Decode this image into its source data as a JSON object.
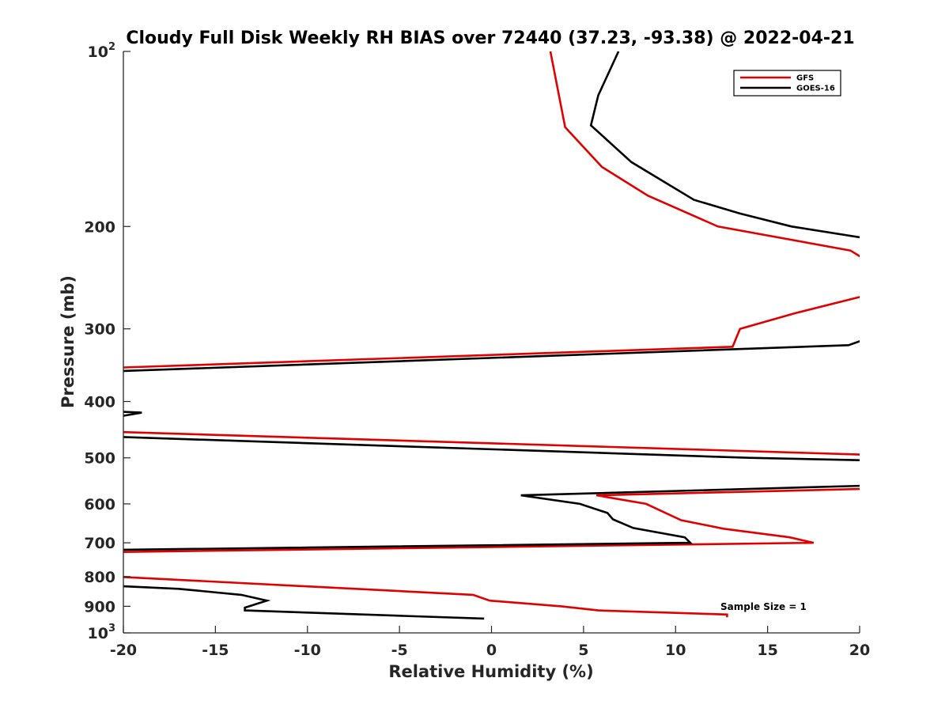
{
  "chart_data": {
    "type": "line",
    "title": "Cloudy Full Disk Weekly RH BIAS over 72440 (37.23, -93.38) @ 2022-04-21",
    "xlabel": "Relative Humidity (%)",
    "ylabel": "Pressure (mb)",
    "xlim": [
      -20,
      20
    ],
    "ylim": [
      100,
      1000
    ],
    "y_scale": "log",
    "y_reversed": true,
    "x_ticks": [
      -20,
      -15,
      -10,
      -5,
      0,
      5,
      10,
      15,
      20
    ],
    "x_tick_labels": [
      "-20",
      "-15",
      "-10",
      "-5",
      "0",
      "5",
      "10",
      "15",
      "20"
    ],
    "y_ticks": [
      {
        "value": 100,
        "base": "10",
        "exp": "2"
      },
      {
        "value": 200,
        "label": "200"
      },
      {
        "value": 300,
        "label": "300"
      },
      {
        "value": 400,
        "label": "400"
      },
      {
        "value": 500,
        "label": "500"
      },
      {
        "value": 600,
        "label": "600"
      },
      {
        "value": 700,
        "label": "700"
      },
      {
        "value": 800,
        "label": "800"
      },
      {
        "value": 900,
        "label": "900"
      },
      {
        "value": 1000,
        "base": "10",
        "exp": "3"
      }
    ],
    "grid": false,
    "legend_position": "top-right",
    "annotation": "Sample Size = 1",
    "series": [
      {
        "name": "GFS",
        "color": "#e00000",
        "points": [
          [
            3.2,
            100
          ],
          [
            4.0,
            135
          ],
          [
            6.0,
            158
          ],
          [
            8.5,
            177
          ],
          [
            12.3,
            200
          ],
          [
            19.5,
            220
          ],
          [
            20.5,
            230
          ],
          [
            null,
            null
          ],
          [
            20.5,
            262
          ],
          [
            16.5,
            282
          ],
          [
            13.5,
            300
          ],
          [
            13.1,
            322
          ],
          [
            -20.5,
            350
          ],
          [
            null,
            null
          ],
          [
            -20.5,
            451
          ],
          [
            20.5,
            494
          ],
          [
            null,
            null
          ],
          [
            20.5,
            565
          ],
          [
            5.7,
            580
          ],
          [
            8.4,
            600
          ],
          [
            10.3,
            640
          ],
          [
            12.6,
            662
          ],
          [
            16.2,
            685
          ],
          [
            17.5,
            700
          ],
          [
            -20.5,
            726
          ],
          [
            null,
            null
          ],
          [
            -20.5,
            800
          ],
          [
            -1.0,
            860
          ],
          [
            -0.1,
            880
          ],
          [
            3.8,
            900
          ],
          [
            5.8,
            915
          ],
          [
            12.8,
            930
          ],
          [
            12.8,
            940
          ]
        ]
      },
      {
        "name": "GOES-16",
        "color": "#000000",
        "points": [
          [
            6.9,
            100
          ],
          [
            5.8,
            119
          ],
          [
            5.4,
            134
          ],
          [
            7.6,
            155
          ],
          [
            11.0,
            180
          ],
          [
            13.5,
            190
          ],
          [
            16.3,
            200
          ],
          [
            20.5,
            210
          ],
          [
            null,
            null
          ],
          [
            20.5,
            311
          ],
          [
            19.4,
            320
          ],
          [
            -20.5,
            355
          ],
          [
            null,
            null
          ],
          [
            -20.5,
            416
          ],
          [
            -19.0,
            418
          ],
          [
            -20.5,
            426
          ],
          [
            null,
            null
          ],
          [
            -20.5,
            460
          ],
          [
            14.0,
            500
          ],
          [
            20.5,
            505
          ],
          [
            null,
            null
          ],
          [
            20.5,
            558
          ],
          [
            1.6,
            580
          ],
          [
            4.8,
            600
          ],
          [
            6.3,
            622
          ],
          [
            6.6,
            638
          ],
          [
            7.7,
            660
          ],
          [
            10.5,
            685
          ],
          [
            10.8,
            700
          ],
          [
            -20.5,
            720
          ],
          [
            null,
            null
          ],
          [
            -20.5,
            830
          ],
          [
            -17.0,
            840
          ],
          [
            -13.6,
            860
          ],
          [
            -12.2,
            880
          ],
          [
            -13.4,
            905
          ],
          [
            -13.4,
            915
          ],
          [
            -4.8,
            935
          ],
          [
            -0.4,
            945
          ]
        ]
      }
    ]
  }
}
